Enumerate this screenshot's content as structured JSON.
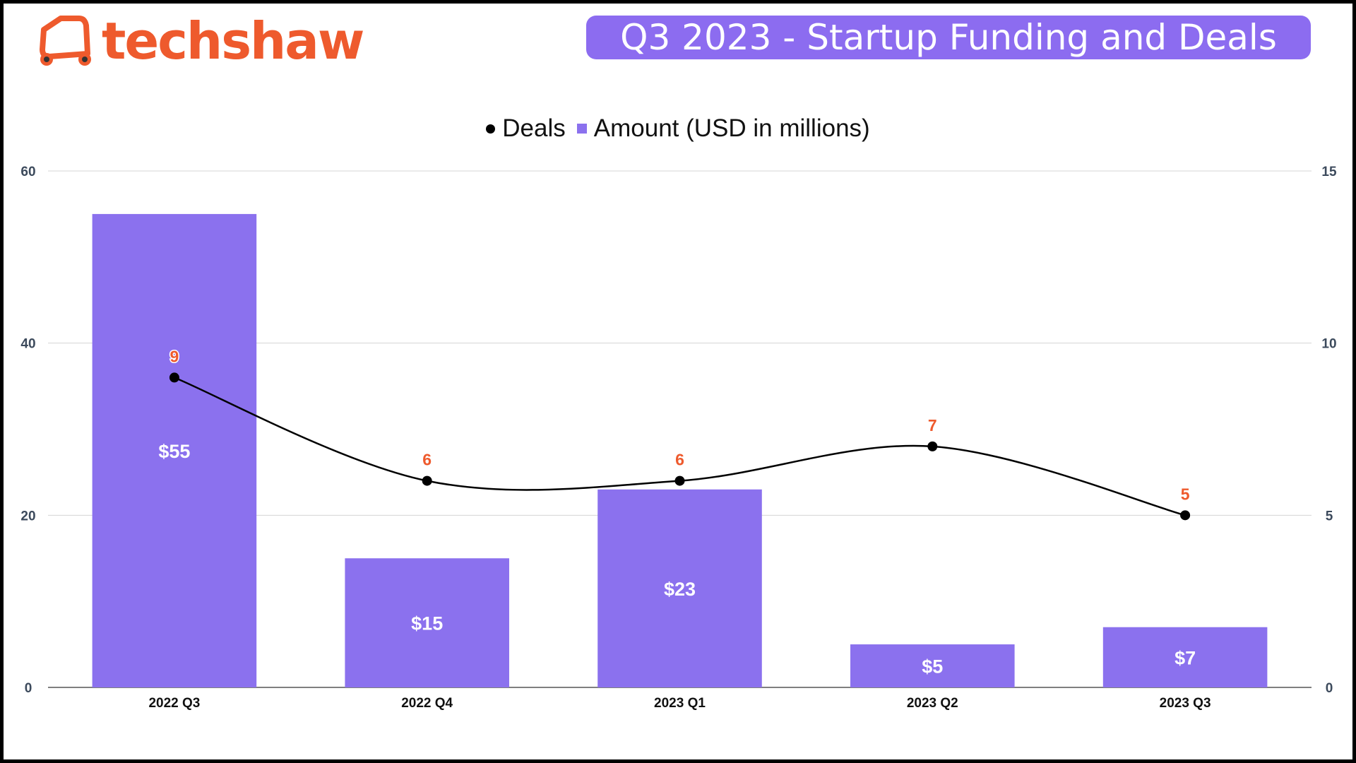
{
  "brand": {
    "name": "techshaw",
    "color": "#ee5a2d",
    "icon": "auto-rickshaw-icon"
  },
  "header": {
    "title": "Q3 2023 - Startup Funding and Deals"
  },
  "colors": {
    "bar": "#8b71ee",
    "line": "#000000",
    "deal_label": "#ee5a2d",
    "bar_label": "#ffffff",
    "title_bg": "#8c6cf0",
    "grid": "#d5d5d5"
  },
  "chart_data": {
    "type": "bar",
    "categories": [
      "2022 Q3",
      "2022 Q4",
      "2023 Q1",
      "2023 Q2",
      "2023 Q3"
    ],
    "series": [
      {
        "name": "Amount (USD in millions)",
        "type": "bar",
        "axis": "left",
        "values": [
          55,
          15,
          23,
          5,
          7
        ],
        "labels": [
          "$55",
          "$15",
          "$23",
          "$5",
          "$7"
        ]
      },
      {
        "name": "Deals",
        "type": "line",
        "axis": "right",
        "smooth": true,
        "values": [
          9,
          6,
          6,
          7,
          5
        ],
        "labels": [
          "9",
          "6",
          "6",
          "7",
          "5"
        ]
      }
    ],
    "legend": [
      "Deals",
      "Amount (USD in millions)"
    ],
    "legend_position": "top",
    "y_left": {
      "min": 0,
      "max": 60,
      "ticks": [
        "0",
        "20",
        "40",
        "60"
      ]
    },
    "y_right": {
      "min": 0,
      "max": 15,
      "ticks": [
        "0",
        "5",
        "10",
        "15"
      ]
    },
    "grid": true
  }
}
